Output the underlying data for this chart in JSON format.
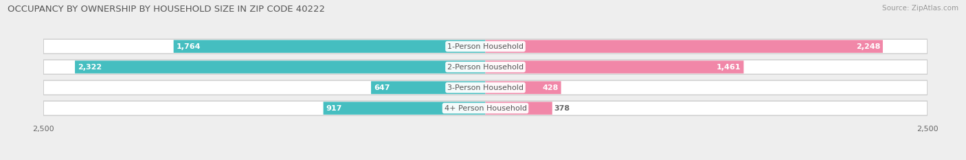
{
  "title": "OCCUPANCY BY OWNERSHIP BY HOUSEHOLD SIZE IN ZIP CODE 40222",
  "source": "Source: ZipAtlas.com",
  "categories": [
    "1-Person Household",
    "2-Person Household",
    "3-Person Household",
    "4+ Person Household"
  ],
  "owner_values": [
    1764,
    2322,
    647,
    917
  ],
  "renter_values": [
    2248,
    1461,
    428,
    378
  ],
  "owner_color": "#45BEC0",
  "renter_color": "#F187A8",
  "background_color": "#eeeeee",
  "bar_bg_color": "#e8e8e8",
  "max_val": 2500,
  "axis_label": "2,500",
  "bar_height": 0.62,
  "title_fontsize": 9.5,
  "source_fontsize": 7.5,
  "label_fontsize": 8.0,
  "value_fontsize": 8.0,
  "tick_fontsize": 8.0,
  "owner_text_color_large": "#ffffff",
  "owner_text_color_small": "#666666",
  "renter_text_color_large": "#ffffff",
  "renter_text_color_small": "#666666",
  "category_text_color": "#555555"
}
